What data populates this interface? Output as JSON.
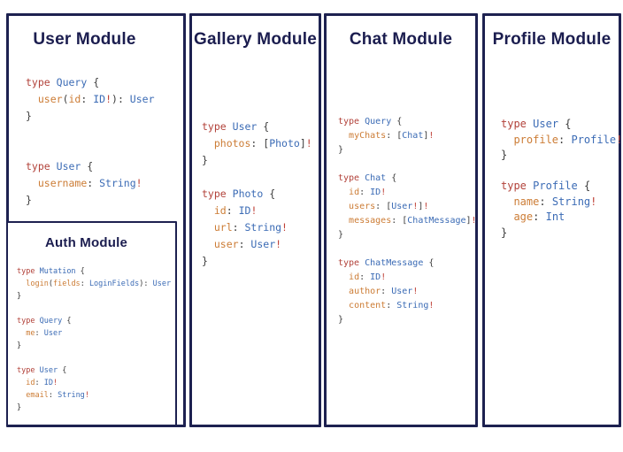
{
  "palette": {
    "border": "#1d2150",
    "title": "#1b1d4f",
    "keyword": "#b2423a",
    "type": "#3b6bb5",
    "field": "#cc7c35",
    "punct": "#3b3b3b",
    "bang": "#bf4036"
  },
  "modules": {
    "user": {
      "title": "User Module",
      "code": [
        [
          [
            "k",
            "type"
          ],
          [
            "p",
            " "
          ],
          [
            "t",
            "Query"
          ],
          [
            "p",
            " {"
          ]
        ],
        [
          [
            "p",
            "  "
          ],
          [
            "f",
            "user"
          ],
          [
            "p",
            "("
          ],
          [
            "f",
            "id"
          ],
          [
            "p",
            ": "
          ],
          [
            "t",
            "ID"
          ],
          [
            "e",
            "!"
          ],
          [
            "p",
            "): "
          ],
          [
            "t",
            "User"
          ]
        ],
        [
          [
            "p",
            "}"
          ]
        ],
        [],
        [],
        [
          [
            "k",
            "type"
          ],
          [
            "p",
            " "
          ],
          [
            "t",
            "User"
          ],
          [
            "p",
            " {"
          ]
        ],
        [
          [
            "p",
            "  "
          ],
          [
            "f",
            "username"
          ],
          [
            "p",
            ": "
          ],
          [
            "t",
            "String"
          ],
          [
            "e",
            "!"
          ]
        ],
        [
          [
            "p",
            "}"
          ]
        ]
      ]
    },
    "auth": {
      "title": "Auth Module",
      "code": [
        [
          [
            "k",
            "type"
          ],
          [
            "p",
            " "
          ],
          [
            "t",
            "Mutation"
          ],
          [
            "p",
            " {"
          ]
        ],
        [
          [
            "p",
            "  "
          ],
          [
            "f",
            "login"
          ],
          [
            "p",
            "("
          ],
          [
            "f",
            "fields"
          ],
          [
            "p",
            ": "
          ],
          [
            "t",
            "LoginFields"
          ],
          [
            "p",
            "): "
          ],
          [
            "t",
            "User"
          ]
        ],
        [
          [
            "p",
            "}"
          ]
        ],
        [],
        [
          [
            "k",
            "type"
          ],
          [
            "p",
            " "
          ],
          [
            "t",
            "Query"
          ],
          [
            "p",
            " {"
          ]
        ],
        [
          [
            "p",
            "  "
          ],
          [
            "f",
            "me"
          ],
          [
            "p",
            ": "
          ],
          [
            "t",
            "User"
          ]
        ],
        [
          [
            "p",
            "}"
          ]
        ],
        [],
        [
          [
            "k",
            "type"
          ],
          [
            "p",
            " "
          ],
          [
            "t",
            "User"
          ],
          [
            "p",
            " {"
          ]
        ],
        [
          [
            "p",
            "  "
          ],
          [
            "f",
            "id"
          ],
          [
            "p",
            ": "
          ],
          [
            "t",
            "ID"
          ],
          [
            "e",
            "!"
          ]
        ],
        [
          [
            "p",
            "  "
          ],
          [
            "f",
            "email"
          ],
          [
            "p",
            ": "
          ],
          [
            "t",
            "String"
          ],
          [
            "e",
            "!"
          ]
        ],
        [
          [
            "p",
            "}"
          ]
        ]
      ]
    },
    "gallery": {
      "title": "Gallery Module",
      "code": [
        [
          [
            "k",
            "type"
          ],
          [
            "p",
            " "
          ],
          [
            "t",
            "User"
          ],
          [
            "p",
            " {"
          ]
        ],
        [
          [
            "p",
            "  "
          ],
          [
            "f",
            "photos"
          ],
          [
            "p",
            ": ["
          ],
          [
            "t",
            "Photo"
          ],
          [
            "p",
            "]"
          ],
          [
            "e",
            "!"
          ]
        ],
        [
          [
            "p",
            "}"
          ]
        ],
        [],
        [
          [
            "k",
            "type"
          ],
          [
            "p",
            " "
          ],
          [
            "t",
            "Photo"
          ],
          [
            "p",
            " {"
          ]
        ],
        [
          [
            "p",
            "  "
          ],
          [
            "f",
            "id"
          ],
          [
            "p",
            ": "
          ],
          [
            "t",
            "ID"
          ],
          [
            "e",
            "!"
          ]
        ],
        [
          [
            "p",
            "  "
          ],
          [
            "f",
            "url"
          ],
          [
            "p",
            ": "
          ],
          [
            "t",
            "String"
          ],
          [
            "e",
            "!"
          ]
        ],
        [
          [
            "p",
            "  "
          ],
          [
            "f",
            "user"
          ],
          [
            "p",
            ": "
          ],
          [
            "t",
            "User"
          ],
          [
            "e",
            "!"
          ]
        ],
        [
          [
            "p",
            "}"
          ]
        ]
      ]
    },
    "chat": {
      "title": "Chat Module",
      "code": [
        [
          [
            "k",
            "type"
          ],
          [
            "p",
            " "
          ],
          [
            "t",
            "Query"
          ],
          [
            "p",
            " {"
          ]
        ],
        [
          [
            "p",
            "  "
          ],
          [
            "f",
            "myChats"
          ],
          [
            "p",
            ": ["
          ],
          [
            "t",
            "Chat"
          ],
          [
            "p",
            "]"
          ],
          [
            "e",
            "!"
          ]
        ],
        [
          [
            "p",
            "}"
          ]
        ],
        [],
        [
          [
            "k",
            "type"
          ],
          [
            "p",
            " "
          ],
          [
            "t",
            "Chat"
          ],
          [
            "p",
            " {"
          ]
        ],
        [
          [
            "p",
            "  "
          ],
          [
            "f",
            "id"
          ],
          [
            "p",
            ": "
          ],
          [
            "t",
            "ID"
          ],
          [
            "e",
            "!"
          ]
        ],
        [
          [
            "p",
            "  "
          ],
          [
            "f",
            "users"
          ],
          [
            "p",
            ": ["
          ],
          [
            "t",
            "User"
          ],
          [
            "e",
            "!"
          ],
          [
            "p",
            "]"
          ],
          [
            "e",
            "!"
          ]
        ],
        [
          [
            "p",
            "  "
          ],
          [
            "f",
            "messages"
          ],
          [
            "p",
            ": ["
          ],
          [
            "t",
            "ChatMessage"
          ],
          [
            "p",
            "]"
          ],
          [
            "e",
            "!"
          ]
        ],
        [
          [
            "p",
            "}"
          ]
        ],
        [],
        [
          [
            "k",
            "type"
          ],
          [
            "p",
            " "
          ],
          [
            "t",
            "ChatMessage"
          ],
          [
            "p",
            " {"
          ]
        ],
        [
          [
            "p",
            "  "
          ],
          [
            "f",
            "id"
          ],
          [
            "p",
            ": "
          ],
          [
            "t",
            "ID"
          ],
          [
            "e",
            "!"
          ]
        ],
        [
          [
            "p",
            "  "
          ],
          [
            "f",
            "author"
          ],
          [
            "p",
            ": "
          ],
          [
            "t",
            "User"
          ],
          [
            "e",
            "!"
          ]
        ],
        [
          [
            "p",
            "  "
          ],
          [
            "f",
            "content"
          ],
          [
            "p",
            ": "
          ],
          [
            "t",
            "String"
          ],
          [
            "e",
            "!"
          ]
        ],
        [
          [
            "p",
            "}"
          ]
        ]
      ]
    },
    "profile": {
      "title": "Profile Module",
      "code": [
        [
          [
            "k",
            "type"
          ],
          [
            "p",
            " "
          ],
          [
            "t",
            "User"
          ],
          [
            "p",
            " {"
          ]
        ],
        [
          [
            "p",
            "  "
          ],
          [
            "f",
            "profile"
          ],
          [
            "p",
            ": "
          ],
          [
            "t",
            "Profile"
          ],
          [
            "e",
            "!"
          ]
        ],
        [
          [
            "p",
            "}"
          ]
        ],
        [],
        [
          [
            "k",
            "type"
          ],
          [
            "p",
            " "
          ],
          [
            "t",
            "Profile"
          ],
          [
            "p",
            " {"
          ]
        ],
        [
          [
            "p",
            "  "
          ],
          [
            "f",
            "name"
          ],
          [
            "p",
            ": "
          ],
          [
            "t",
            "String"
          ],
          [
            "e",
            "!"
          ]
        ],
        [
          [
            "p",
            "  "
          ],
          [
            "f",
            "age"
          ],
          [
            "p",
            ": "
          ],
          [
            "t",
            "Int"
          ]
        ],
        [
          [
            "p",
            "}"
          ]
        ]
      ]
    }
  }
}
